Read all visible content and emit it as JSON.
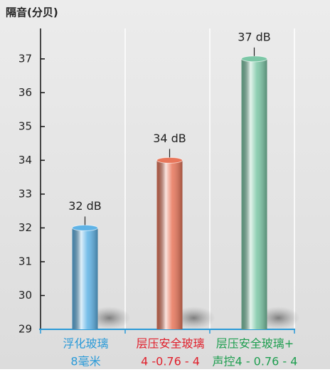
{
  "chart_data": {
    "type": "bar",
    "title": "隔音(分贝)",
    "categories": [
      [
        "浮化玻璃",
        "8毫米"
      ],
      [
        "层压安全玻璃",
        "4 -0.76 - 4"
      ],
      [
        "层压安全玻璃+",
        "声控4 - 0.76 - 4"
      ]
    ],
    "values": [
      32,
      34,
      37
    ],
    "value_labels": [
      "32 dB",
      "34 dB",
      "37 dB"
    ],
    "colors": [
      "#5fb3e6",
      "#e8765a",
      "#7cc7a6"
    ],
    "label_colors": [
      "#2a9ad8",
      "#e0202c",
      "#1f9e50"
    ],
    "ylim": [
      29,
      37.9
    ],
    "yticks": [
      29,
      30,
      31,
      32,
      33,
      34,
      35,
      36,
      37
    ]
  }
}
